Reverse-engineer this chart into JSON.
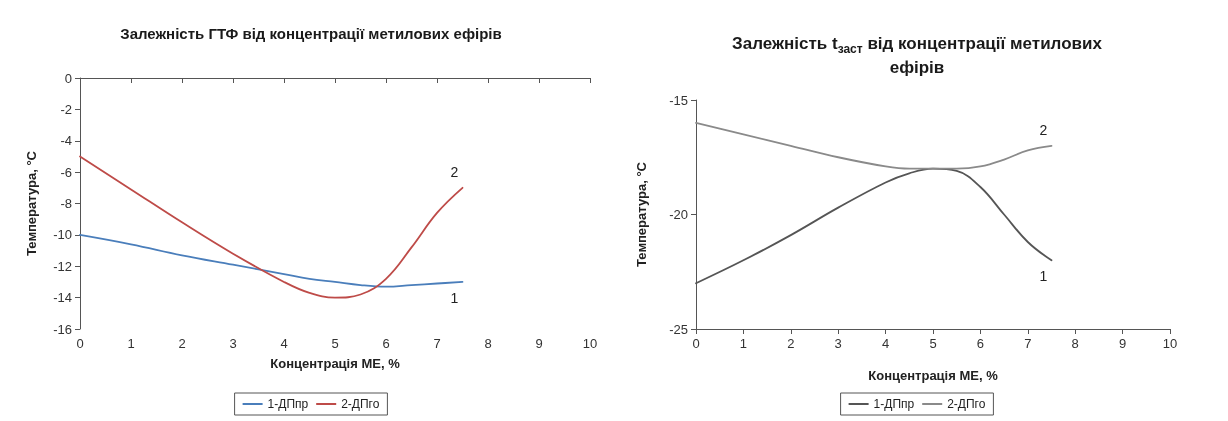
{
  "chart_data": [
    {
      "type": "line",
      "title": "Залежність ГТФ від концентрації метилових ефірів",
      "xlabel": "Концентрація МЕ, %",
      "ylabel": "Температура, °С",
      "xlim": [
        0,
        10
      ],
      "xticks": [
        0,
        1,
        2,
        3,
        4,
        5,
        6,
        7,
        8,
        9,
        10
      ],
      "ylim": [
        -16,
        0
      ],
      "yticks": [
        -16,
        -14,
        -12,
        -10,
        -8,
        -6,
        -4,
        -2,
        0
      ],
      "grid": false,
      "legend": "bottom",
      "marker": "none",
      "line_style": "solid",
      "x": [
        0,
        1,
        2,
        3,
        4,
        4.5,
        5,
        5.5,
        6,
        6.5,
        7,
        7.5
      ],
      "series": [
        {
          "name": "1-ДПпр",
          "color": "#4a7ebb",
          "values": [
            -10,
            -10.6,
            -11.3,
            -11.9,
            -12.5,
            -12.8,
            -13.0,
            -13.2,
            -13.3,
            -13.2,
            -13.1,
            -13.0
          ]
        },
        {
          "name": "2-ДПго",
          "color": "#be4b48",
          "values": [
            -5,
            -7.1,
            -9.2,
            -11.2,
            -13.0,
            -13.7,
            -14.0,
            -13.8,
            -12.8,
            -10.8,
            -8.6,
            -7.0
          ]
        }
      ],
      "annotations": [
        "1",
        "2"
      ]
    },
    {
      "type": "line",
      "title": "Залежність t$_{заст}$ від концентрації метилових ефірів",
      "xlabel": "Концентрація МЕ, %",
      "ylabel": "Температура, °С",
      "xlim": [
        0,
        10
      ],
      "xticks": [
        0,
        1,
        2,
        3,
        4,
        5,
        6,
        7,
        8,
        9,
        10
      ],
      "ylim": [
        -25,
        -15
      ],
      "yticks": [
        -25,
        -20,
        -15
      ],
      "grid": false,
      "legend": "bottom",
      "marker": "none",
      "line_style": "solid",
      "x": [
        0,
        1,
        2,
        3,
        4,
        4.5,
        5,
        5.5,
        6,
        6.5,
        7,
        7.5
      ],
      "series": [
        {
          "name": "1-ДПпр",
          "color": "#555555",
          "values": [
            -23,
            -22,
            -20.9,
            -19.7,
            -18.6,
            -18.2,
            -18.0,
            -18.1,
            -18.8,
            -20.0,
            -21.2,
            -22.0
          ]
        },
        {
          "name": "2-ДПго",
          "color": "#8a8a8a",
          "values": [
            -16,
            -16.5,
            -17,
            -17.5,
            -17.9,
            -18.0,
            -18.0,
            -18.0,
            -17.9,
            -17.6,
            -17.2,
            -17.0
          ]
        }
      ],
      "annotations": [
        "1",
        "2"
      ]
    }
  ]
}
